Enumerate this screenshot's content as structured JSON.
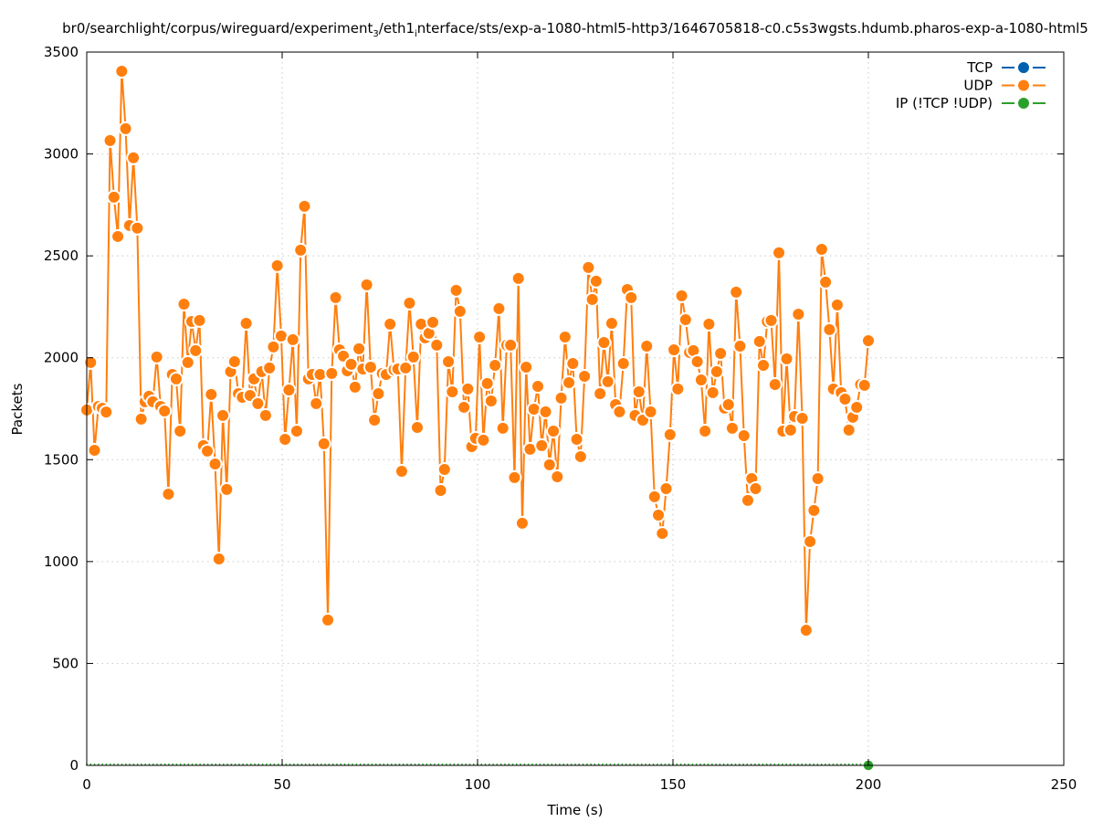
{
  "chart_data": {
    "type": "line",
    "title": "br0/searchlight/corpus/wireguard/experiment_3/eth1_interface/sts/exp-a-1080-html5-http3/1646705818-c0.c5s3wgsts.hdumb.pharos-exp-a-1080-html5",
    "xlabel": "Time (s)",
    "ylabel": "Packets",
    "xlim": [
      0,
      250
    ],
    "ylim": [
      0,
      3500
    ],
    "xticks": [
      0,
      50,
      100,
      150,
      200,
      250
    ],
    "yticks": [
      0,
      500,
      1000,
      1500,
      2000,
      2500,
      3000,
      3500
    ],
    "grid": true,
    "legend_position": "top-right",
    "x_range_of_series": [
      0,
      200
    ],
    "series": [
      {
        "name": "TCP",
        "color": "#0060ad",
        "values": []
      },
      {
        "name": "UDP",
        "color": "#ff7f0e",
        "values": [
          1744,
          1977,
          1546,
          1761,
          1752,
          1734,
          3066,
          2788,
          2595,
          3406,
          3124,
          2649,
          2981,
          2636,
          1699,
          1784,
          1811,
          1784,
          2004,
          1761,
          1739,
          1331,
          1918,
          1896,
          1640,
          2263,
          1977,
          2178,
          2035,
          2183,
          1569,
          1542,
          1820,
          1479,
          1013,
          1717,
          1354,
          1932,
          1981,
          1824,
          1806,
          2169,
          1815,
          1896,
          1775,
          1932,
          1717,
          1950,
          2053,
          2452,
          2107,
          1600,
          1842,
          2089,
          1640,
          2528,
          2743,
          1896,
          1918,
          1775,
          1918,
          1578,
          713,
          1923,
          2295,
          2039,
          2008,
          1936,
          1968,
          1856,
          2044,
          1945,
          2358,
          1954,
          1694,
          1824,
          1923,
          1918,
          2165,
          1941,
          1945,
          1443,
          1950,
          2268,
          2004,
          1658,
          2165,
          2098,
          2120,
          2174,
          2062,
          1349,
          1452,
          1981,
          1833,
          2331,
          2228,
          1757,
          1847,
          1564,
          1605,
          2102,
          1596,
          1874,
          1788,
          1963,
          2241,
          1654,
          2062,
          2062,
          1412,
          2389,
          1188,
          1954,
          1551,
          1748,
          1860,
          1569,
          1735,
          1475,
          1640,
          1416,
          1802,
          2102,
          1878,
          1972,
          1600,
          1515,
          1909,
          2443,
          2286,
          2376,
          1824,
          2075,
          1883,
          2169,
          1770,
          1735,
          1972,
          2335,
          2295,
          1717,
          1833,
          1694,
          2057,
          1735,
          1318,
          1228,
          1138,
          1358,
          1623,
          2039,
          1847,
          2304,
          2187,
          2026,
          2035,
          1981,
          1891,
          1640,
          2165,
          1829,
          1932,
          2021,
          1753,
          1770,
          1654,
          2322,
          2057,
          1618,
          1300,
          1407,
          1358,
          2080,
          1963,
          2178,
          2183,
          1869,
          2515,
          1640,
          1995,
          1645,
          1712,
          2214,
          1703,
          663,
          1098,
          1251,
          1407,
          2532,
          2371,
          2138,
          1847,
          2259,
          1829,
          1797,
          1645,
          1708,
          1757,
          1869,
          1865,
          2084
        ]
      },
      {
        "name": "IP (!TCP  !UDP)",
        "color": "#2ca02c",
        "values": [
          0
        ],
        "x": [
          200
        ]
      }
    ]
  }
}
